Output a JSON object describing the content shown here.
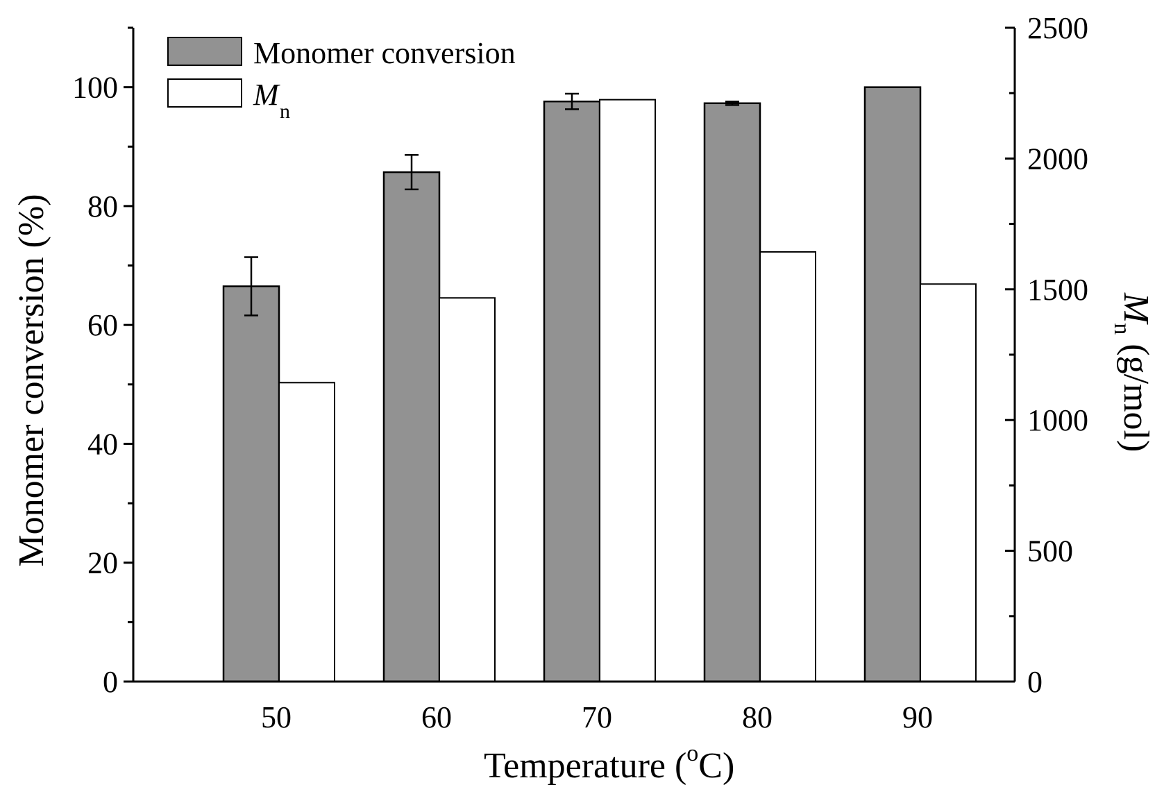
{
  "chart_data": {
    "type": "bar",
    "xlabel": "Temperature (",
    "xlabel_sup": "o",
    "xlabel_unit": "C)",
    "ylabel_left": "Monomer conversion (%)",
    "ylabel_right_main": "M",
    "ylabel_right_sub": "n",
    "ylabel_right_unit": " (g/mol)",
    "categories": [
      "50",
      "60",
      "70",
      "80",
      "90"
    ],
    "left_axis": {
      "ylim": [
        0,
        110
      ],
      "ticks": [
        0,
        20,
        40,
        60,
        80,
        100
      ]
    },
    "right_axis": {
      "ylim": [
        0,
        2500
      ],
      "ticks": [
        0,
        500,
        1000,
        1500,
        2000,
        2500
      ]
    },
    "series": [
      {
        "name": "Monomer conversion",
        "axis": "left",
        "color": "#929292",
        "values": [
          66.5,
          85.7,
          97.6,
          97.3,
          100.0
        ],
        "errors": [
          4.9,
          2.9,
          1.3,
          0.3,
          0.0
        ]
      },
      {
        "name": "M",
        "name_sub": "n",
        "axis": "right",
        "color": "#ffffff",
        "values": [
          1143,
          1467,
          2225,
          1643,
          1520
        ]
      }
    ],
    "legend_position": "top-left"
  }
}
